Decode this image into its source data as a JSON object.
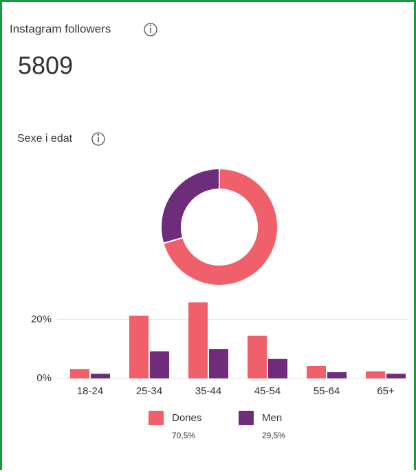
{
  "header": {
    "title": "Instagram followers",
    "value": 5809
  },
  "section_title": "Sexe i edat",
  "chart_data": [
    {
      "type": "pie",
      "donut": true,
      "values": [
        70.5,
        29.5
      ],
      "value_labels": [
        "70,5%",
        "29,5%"
      ],
      "colors": [
        "#f0606a",
        "#6e2c7a"
      ]
    },
    {
      "type": "bar",
      "categories": [
        "18-24",
        "25-34",
        "35-44",
        "45-54",
        "55-64",
        "65+"
      ],
      "series": [
        {
          "name": "Dones",
          "color": "#f0606a",
          "values": [
            3.2,
            21.3,
            25.8,
            14.5,
            4.2,
            2.4
          ]
        },
        {
          "name": "Men",
          "color": "#6e2c7a",
          "values": [
            1.6,
            9.2,
            10,
            6.6,
            2.1,
            1.6
          ]
        }
      ],
      "ylim": [
        0,
        28
      ],
      "yticks": [
        {
          "value": 0,
          "label": "0%"
        },
        {
          "value": 20,
          "label": "20%"
        }
      ],
      "grid": true
    }
  ]
}
